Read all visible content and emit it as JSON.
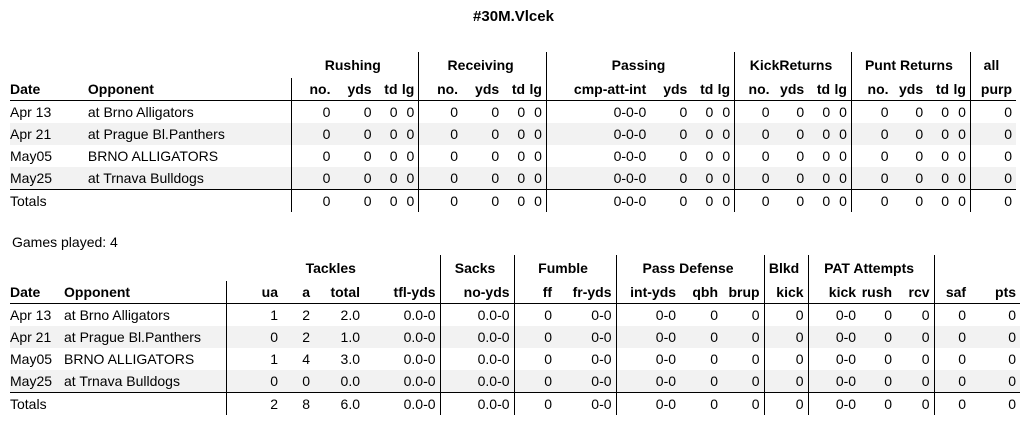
{
  "title": "#30M.Vlcek",
  "games_played": "Games played: 4",
  "offense": {
    "groups": [
      "Rushing",
      "Receiving",
      "Passing",
      "KickReturns",
      "Punt Returns",
      "all"
    ],
    "columns": [
      "Date",
      "Opponent",
      "no.",
      "yds",
      "td",
      "lg",
      "no.",
      "yds",
      "td",
      "lg",
      "cmp-att-int",
      "yds",
      "td",
      "lg",
      "no.",
      "yds",
      "td",
      "lg",
      "no.",
      "yds",
      "td",
      "lg",
      "purp"
    ],
    "rows": [
      [
        "Apr 13",
        "at Brno Alligators",
        "0",
        "0",
        "0",
        "0",
        "0",
        "0",
        "0",
        "0",
        "0-0-0",
        "0",
        "0",
        "0",
        "0",
        "0",
        "0",
        "0",
        "0",
        "0",
        "0",
        "0",
        "0"
      ],
      [
        "Apr 21",
        "at Prague Bl.Panthers",
        "0",
        "0",
        "0",
        "0",
        "0",
        "0",
        "0",
        "0",
        "0-0-0",
        "0",
        "0",
        "0",
        "0",
        "0",
        "0",
        "0",
        "0",
        "0",
        "0",
        "0",
        "0"
      ],
      [
        "May05",
        "BRNO ALLIGATORS",
        "0",
        "0",
        "0",
        "0",
        "0",
        "0",
        "0",
        "0",
        "0-0-0",
        "0",
        "0",
        "0",
        "0",
        "0",
        "0",
        "0",
        "0",
        "0",
        "0",
        "0",
        "0"
      ],
      [
        "May25",
        "at Trnava Bulldogs",
        "0",
        "0",
        "0",
        "0",
        "0",
        "0",
        "0",
        "0",
        "0-0-0",
        "0",
        "0",
        "0",
        "0",
        "0",
        "0",
        "0",
        "0",
        "0",
        "0",
        "0",
        "0"
      ]
    ],
    "totals": [
      "Totals",
      "",
      "0",
      "0",
      "0",
      "0",
      "0",
      "0",
      "0",
      "0",
      "0-0-0",
      "0",
      "0",
      "0",
      "0",
      "0",
      "0",
      "0",
      "0",
      "0",
      "0",
      "0",
      "0"
    ]
  },
  "defense": {
    "groups": [
      "Tackles",
      "Sacks",
      "Fumble",
      "Pass Defense",
      "Blkd",
      "PAT Attempts"
    ],
    "columns": [
      "Date",
      "Opponent",
      "ua",
      "a",
      "total",
      "tfl-yds",
      "no-yds",
      "ff",
      "fr-yds",
      "int-yds",
      "qbh",
      "brup",
      "kick",
      "kick",
      "rush",
      "rcv",
      "saf",
      "pts"
    ],
    "rows": [
      [
        "Apr 13",
        "at Brno Alligators",
        "1",
        "2",
        "2.0",
        "0.0-0",
        "0.0-0",
        "0",
        "0-0",
        "0-0",
        "0",
        "0",
        "0",
        "0-0",
        "0",
        "0",
        "0",
        "0"
      ],
      [
        "Apr 21",
        "at Prague Bl.Panthers",
        "0",
        "2",
        "1.0",
        "0.0-0",
        "0.0-0",
        "0",
        "0-0",
        "0-0",
        "0",
        "0",
        "0",
        "0-0",
        "0",
        "0",
        "0",
        "0"
      ],
      [
        "May05",
        "BRNO ALLIGATORS",
        "1",
        "4",
        "3.0",
        "0.0-0",
        "0.0-0",
        "0",
        "0-0",
        "0-0",
        "0",
        "0",
        "0",
        "0-0",
        "0",
        "0",
        "0",
        "0"
      ],
      [
        "May25",
        "at Trnava Bulldogs",
        "0",
        "0",
        "0.0",
        "0.0-0",
        "0.0-0",
        "0",
        "0-0",
        "0-0",
        "0",
        "0",
        "0",
        "0-0",
        "0",
        "0",
        "0",
        "0"
      ]
    ],
    "totals": [
      "Totals",
      "",
      "2",
      "8",
      "6.0",
      "0.0-0",
      "0.0-0",
      "0",
      "0-0",
      "0-0",
      "0",
      "0",
      "0",
      "0-0",
      "0",
      "0",
      "0",
      "0"
    ]
  }
}
